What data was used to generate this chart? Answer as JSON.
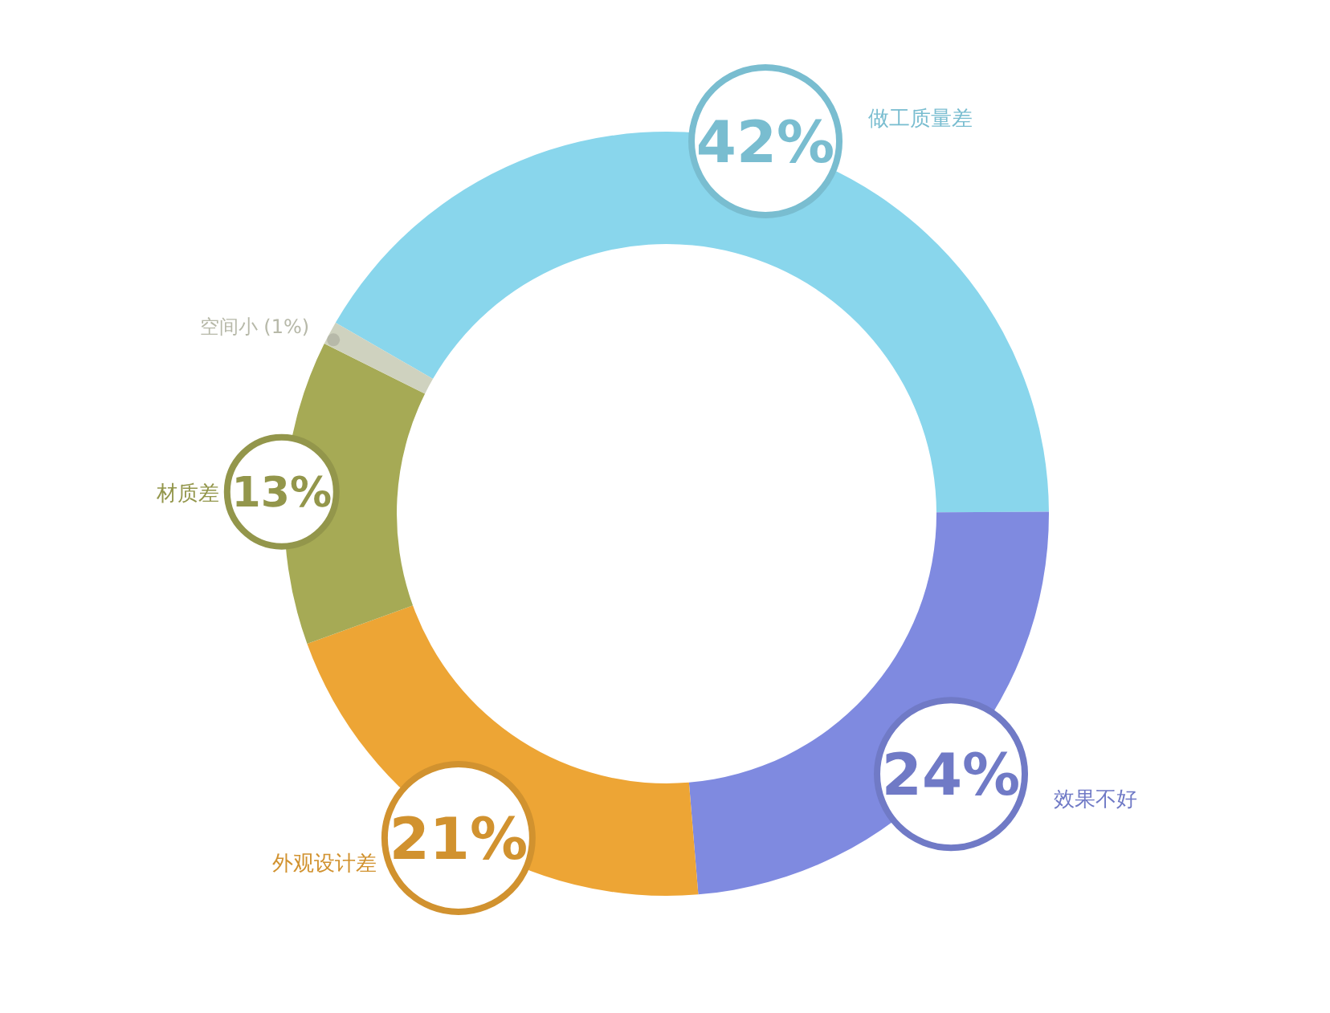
{
  "chart_data": {
    "type": "donut",
    "categories": [
      "做工质量差",
      "效果不好",
      "外观设计差",
      "材质差",
      "空间小 (1%)"
    ],
    "values": [
      42,
      24,
      21,
      13,
      1
    ],
    "colors": [
      "#89d6ec",
      "#7f8ae0",
      "#eda535",
      "#a6aa55",
      "#cfd2bf"
    ],
    "value_labels": [
      "42%",
      "24%",
      "21%",
      "13%",
      null
    ]
  }
}
